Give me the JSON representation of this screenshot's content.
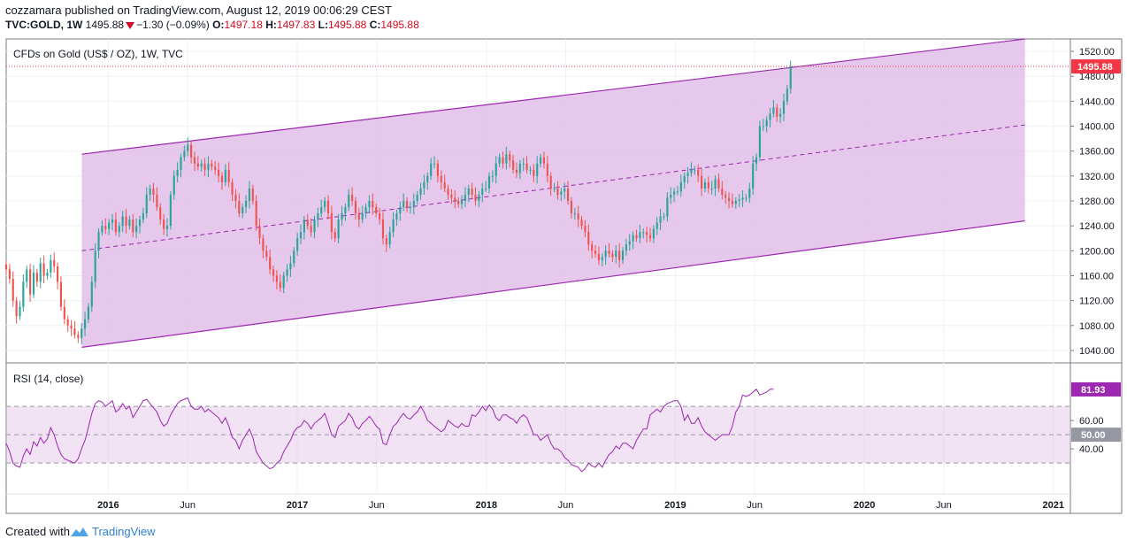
{
  "header": {
    "user": "cozzamara",
    "published_text": "published on TradingView.com, August 12, 2019 00:06:29 CEST",
    "symbol": "TVC:GOLD, 1W",
    "last": "1495.88",
    "change": "−1.30 (−0.09%)",
    "o_label": "O:",
    "o_value": "1497.18",
    "h_label": "H:",
    "h_value": "1497.83",
    "l_label": "L:",
    "l_value": "1495.88",
    "c_label": "C:",
    "c_value": "1495.88"
  },
  "footer": {
    "created_text": "Created with",
    "brand": "TradingView"
  },
  "colors": {
    "up": "#26a69a",
    "down": "#ef5350",
    "channel_line": "#9c27b0",
    "channel_fill": "#e1bee7",
    "rsi": "#9c27b0",
    "price_tag": "#f23645"
  },
  "chart_data": {
    "type": "candlestick",
    "title": "CFDs on Gold (US$ / OZ), 1W, TVC",
    "y_ticks": [
      "1520.00",
      "1480.00",
      "1440.00",
      "1400.00",
      "1360.00",
      "1320.00",
      "1280.00",
      "1240.00",
      "1200.00",
      "1160.00",
      "1120.00",
      "1080.00",
      "1040.00"
    ],
    "y_tick_values": [
      1520,
      1480,
      1440,
      1400,
      1360,
      1320,
      1280,
      1240,
      1200,
      1160,
      1120,
      1080,
      1040
    ],
    "ylim": [
      1020,
      1540
    ],
    "x_ticks": [
      "2016",
      "Jun",
      "2017",
      "Jun",
      "2018",
      "Jun",
      "2019",
      "Jun",
      "2020",
      "Jun",
      "2021"
    ],
    "x_tick_years": [
      2016.0,
      2016.42,
      2017.0,
      2017.42,
      2018.0,
      2018.42,
      2019.0,
      2019.42,
      2020.0,
      2020.42,
      2021.0
    ],
    "xlim": [
      2015.46,
      2021.09
    ],
    "last_price_label": "1495.88",
    "last_price": 1495.88,
    "channel": {
      "start": {
        "year": 2015.86,
        "upper": 1355,
        "lower": 1045,
        "mid": 1200
      },
      "end": {
        "year": 2020.85,
        "upper": 1540,
        "lower": 1248,
        "mid": 1402
      }
    },
    "weekly_closes": [
      1170,
      1155,
      1120,
      1095,
      1110,
      1150,
      1170,
      1130,
      1165,
      1150,
      1180,
      1160,
      1165,
      1185,
      1175,
      1150,
      1110,
      1090,
      1080,
      1075,
      1065,
      1060,
      1075,
      1090,
      1110,
      1150,
      1200,
      1230,
      1240,
      1235,
      1245,
      1250,
      1230,
      1240,
      1255,
      1240,
      1250,
      1230,
      1240,
      1250,
      1260,
      1290,
      1300,
      1290,
      1270,
      1250,
      1235,
      1240,
      1290,
      1320,
      1330,
      1350,
      1360,
      1370,
      1350,
      1340,
      1335,
      1340,
      1330,
      1340,
      1335,
      1330,
      1320,
      1310,
      1330,
      1310,
      1290,
      1280,
      1260,
      1270,
      1280,
      1300,
      1280,
      1240,
      1220,
      1200,
      1190,
      1170,
      1160,
      1150,
      1140,
      1160,
      1170,
      1180,
      1200,
      1220,
      1230,
      1250,
      1240,
      1230,
      1250,
      1260,
      1270,
      1280,
      1260,
      1230,
      1220,
      1250,
      1260,
      1270,
      1290,
      1280,
      1260,
      1250,
      1260,
      1270,
      1280,
      1270,
      1260,
      1250,
      1220,
      1210,
      1230,
      1250,
      1260,
      1270,
      1280,
      1270,
      1270,
      1280,
      1290,
      1300,
      1310,
      1320,
      1340,
      1340,
      1320,
      1310,
      1300,
      1290,
      1285,
      1280,
      1275,
      1280,
      1290,
      1300,
      1290,
      1280,
      1290,
      1300,
      1300,
      1320,
      1320,
      1340,
      1350,
      1340,
      1355,
      1345,
      1330,
      1325,
      1340,
      1340,
      1330,
      1330,
      1320,
      1340,
      1350,
      1340,
      1320,
      1300,
      1300,
      1290,
      1295,
      1300,
      1280,
      1260,
      1260,
      1250,
      1240,
      1230,
      1210,
      1200,
      1195,
      1185,
      1190,
      1200,
      1195,
      1190,
      1200,
      1185,
      1200,
      1210,
      1215,
      1225,
      1220,
      1230,
      1230,
      1225,
      1220,
      1235,
      1245,
      1255,
      1255,
      1285,
      1290,
      1295,
      1295,
      1310,
      1320,
      1325,
      1330,
      1330,
      1320,
      1300,
      1310,
      1300,
      1300,
      1315,
      1300,
      1290,
      1285,
      1280,
      1275,
      1280,
      1282,
      1285,
      1285,
      1300,
      1340,
      1350,
      1400,
      1400,
      1410,
      1420,
      1430,
      1415,
      1420,
      1440,
      1460,
      1496
    ],
    "weekly_rsi": [
      44,
      38,
      30,
      28,
      27,
      35,
      40,
      36,
      45,
      42,
      48,
      44,
      47,
      55,
      50,
      42,
      36,
      33,
      32,
      31,
      30,
      33,
      40,
      46,
      55,
      65,
      72,
      74,
      73,
      70,
      72,
      74,
      66,
      68,
      72,
      68,
      70,
      62,
      66,
      70,
      74,
      75,
      72,
      69,
      66,
      60,
      56,
      58,
      64,
      68,
      72,
      74,
      75,
      76,
      70,
      68,
      68,
      70,
      66,
      68,
      66,
      64,
      62,
      58,
      62,
      56,
      48,
      46,
      40,
      46,
      50,
      54,
      48,
      38,
      34,
      30,
      28,
      26,
      27,
      30,
      32,
      38,
      42,
      46,
      52,
      55,
      56,
      60,
      58,
      54,
      58,
      60,
      62,
      65,
      58,
      50,
      48,
      56,
      58,
      60,
      65,
      62,
      56,
      54,
      58,
      60,
      63,
      60,
      56,
      54,
      44,
      43,
      50,
      56,
      58,
      62,
      65,
      62,
      61,
      64,
      66,
      70,
      66,
      60,
      58,
      56,
      54,
      52,
      54,
      60,
      58,
      56,
      55,
      58,
      56,
      56,
      64,
      63,
      66,
      70,
      67,
      71,
      68,
      62,
      60,
      64,
      64,
      62,
      61,
      58,
      62,
      64,
      62,
      56,
      50,
      50,
      46,
      48,
      50,
      44,
      40,
      40,
      38,
      34,
      32,
      29,
      28,
      27,
      24,
      26,
      30,
      28,
      27,
      30,
      27,
      32,
      36,
      38,
      42,
      40,
      44,
      44,
      42,
      40,
      46,
      50,
      54,
      54,
      64,
      66,
      68,
      66,
      70,
      72,
      73,
      74,
      74,
      70,
      60,
      64,
      58,
      58,
      62,
      56,
      52,
      50,
      48,
      46,
      48,
      50,
      50,
      50,
      56,
      66,
      70,
      78,
      77,
      78,
      80,
      82,
      78,
      79,
      80,
      82,
      82
    ],
    "rsi": {
      "title": "RSI (14, close)",
      "last_label": "81.93",
      "last": 81.93,
      "y_ticks": [
        "60.00",
        "40.00"
      ],
      "y_tick_values": [
        60,
        40
      ],
      "ylim": [
        12,
        100
      ],
      "band_upper": 70,
      "band_lower": 30,
      "mid": 50,
      "mid_label": "50.00"
    }
  }
}
